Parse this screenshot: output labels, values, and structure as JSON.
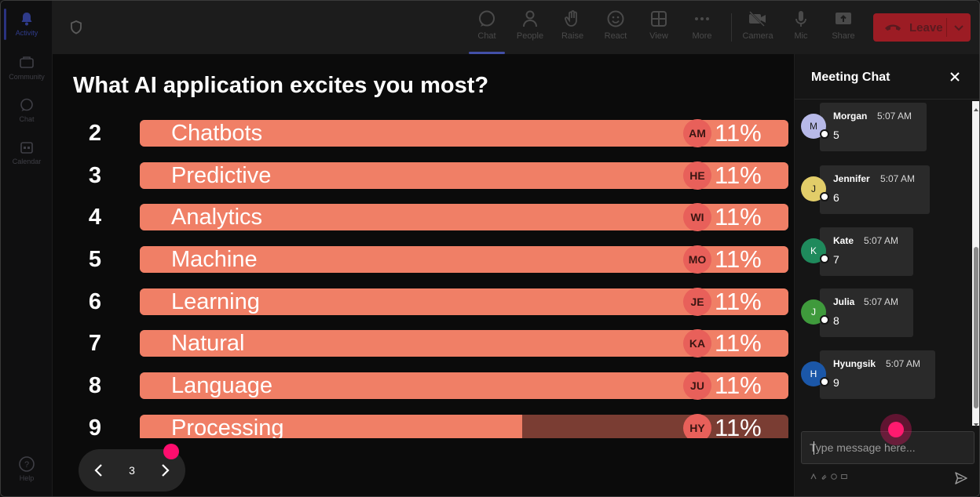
{
  "rail": {
    "items": [
      {
        "label": "Activity",
        "icon": "bell-icon"
      },
      {
        "label": "Community",
        "icon": "community-icon"
      },
      {
        "label": "Chat",
        "icon": "chat-icon"
      },
      {
        "label": "Calendar",
        "icon": "calendar-icon"
      }
    ],
    "help": {
      "label": "Help",
      "icon": "help-icon"
    }
  },
  "toolbar": {
    "items": [
      {
        "label": "Chat",
        "icon": "chat-icon"
      },
      {
        "label": "People",
        "icon": "people-icon"
      },
      {
        "label": "Raise",
        "icon": "raise-hand-icon"
      },
      {
        "label": "React",
        "icon": "smiley-icon"
      },
      {
        "label": "View",
        "icon": "grid-icon"
      },
      {
        "label": "More",
        "icon": "more-icon"
      },
      {
        "label": "Camera",
        "icon": "camera-off-icon"
      },
      {
        "label": "Mic",
        "icon": "mic-icon"
      },
      {
        "label": "Share",
        "icon": "share-icon"
      }
    ],
    "leave_label": "Leave"
  },
  "poll": {
    "title": "What AI application excites you most?",
    "rows": [
      {
        "number": "2",
        "label": "Chatbots",
        "initials": "AM",
        "percent": "11%",
        "fill": 1.0
      },
      {
        "number": "3",
        "label": "Predictive",
        "initials": "HE",
        "percent": "11%",
        "fill": 1.0
      },
      {
        "number": "4",
        "label": "Analytics",
        "initials": "WI",
        "percent": "11%",
        "fill": 1.0
      },
      {
        "number": "5",
        "label": "Machine",
        "initials": "MO",
        "percent": "11%",
        "fill": 1.0
      },
      {
        "number": "6",
        "label": "Learning",
        "initials": "JE",
        "percent": "11%",
        "fill": 1.0
      },
      {
        "number": "7",
        "label": "Natural",
        "initials": "KA",
        "percent": "11%",
        "fill": 1.0
      },
      {
        "number": "8",
        "label": "Language",
        "initials": "JU",
        "percent": "11%",
        "fill": 1.0
      },
      {
        "number": "9",
        "label": "Processing",
        "initials": "HY",
        "percent": "11%",
        "fill": 0.59
      }
    ],
    "page": "3"
  },
  "chat": {
    "title": "Meeting Chat",
    "messages": [
      {
        "initial": "M",
        "name": "Morgan",
        "time": "5:07 AM",
        "text": "5",
        "avatar_color": "#b7b9e8"
      },
      {
        "initial": "J",
        "name": "Jennifer",
        "time": "5:07 AM",
        "text": "6",
        "avatar_color": "#e2cd69"
      },
      {
        "initial": "K",
        "name": "Kate",
        "time": "5:07 AM",
        "text": "7",
        "avatar_color": "#1f8a5c"
      },
      {
        "initial": "J",
        "name": "Julia",
        "time": "5:07 AM",
        "text": "8",
        "avatar_color": "#3f9a3c"
      },
      {
        "initial": "H",
        "name": "Hyungsik",
        "time": "5:07 AM",
        "text": "9",
        "avatar_color": "#1b57a8"
      }
    ],
    "input_placeholder": "Type message here..."
  },
  "colors": {
    "bar_fill": "#f07f66",
    "bar_track": "#7a3d33",
    "leave_bg": "#9c1c24",
    "click_marker": "#ff1a6f"
  }
}
